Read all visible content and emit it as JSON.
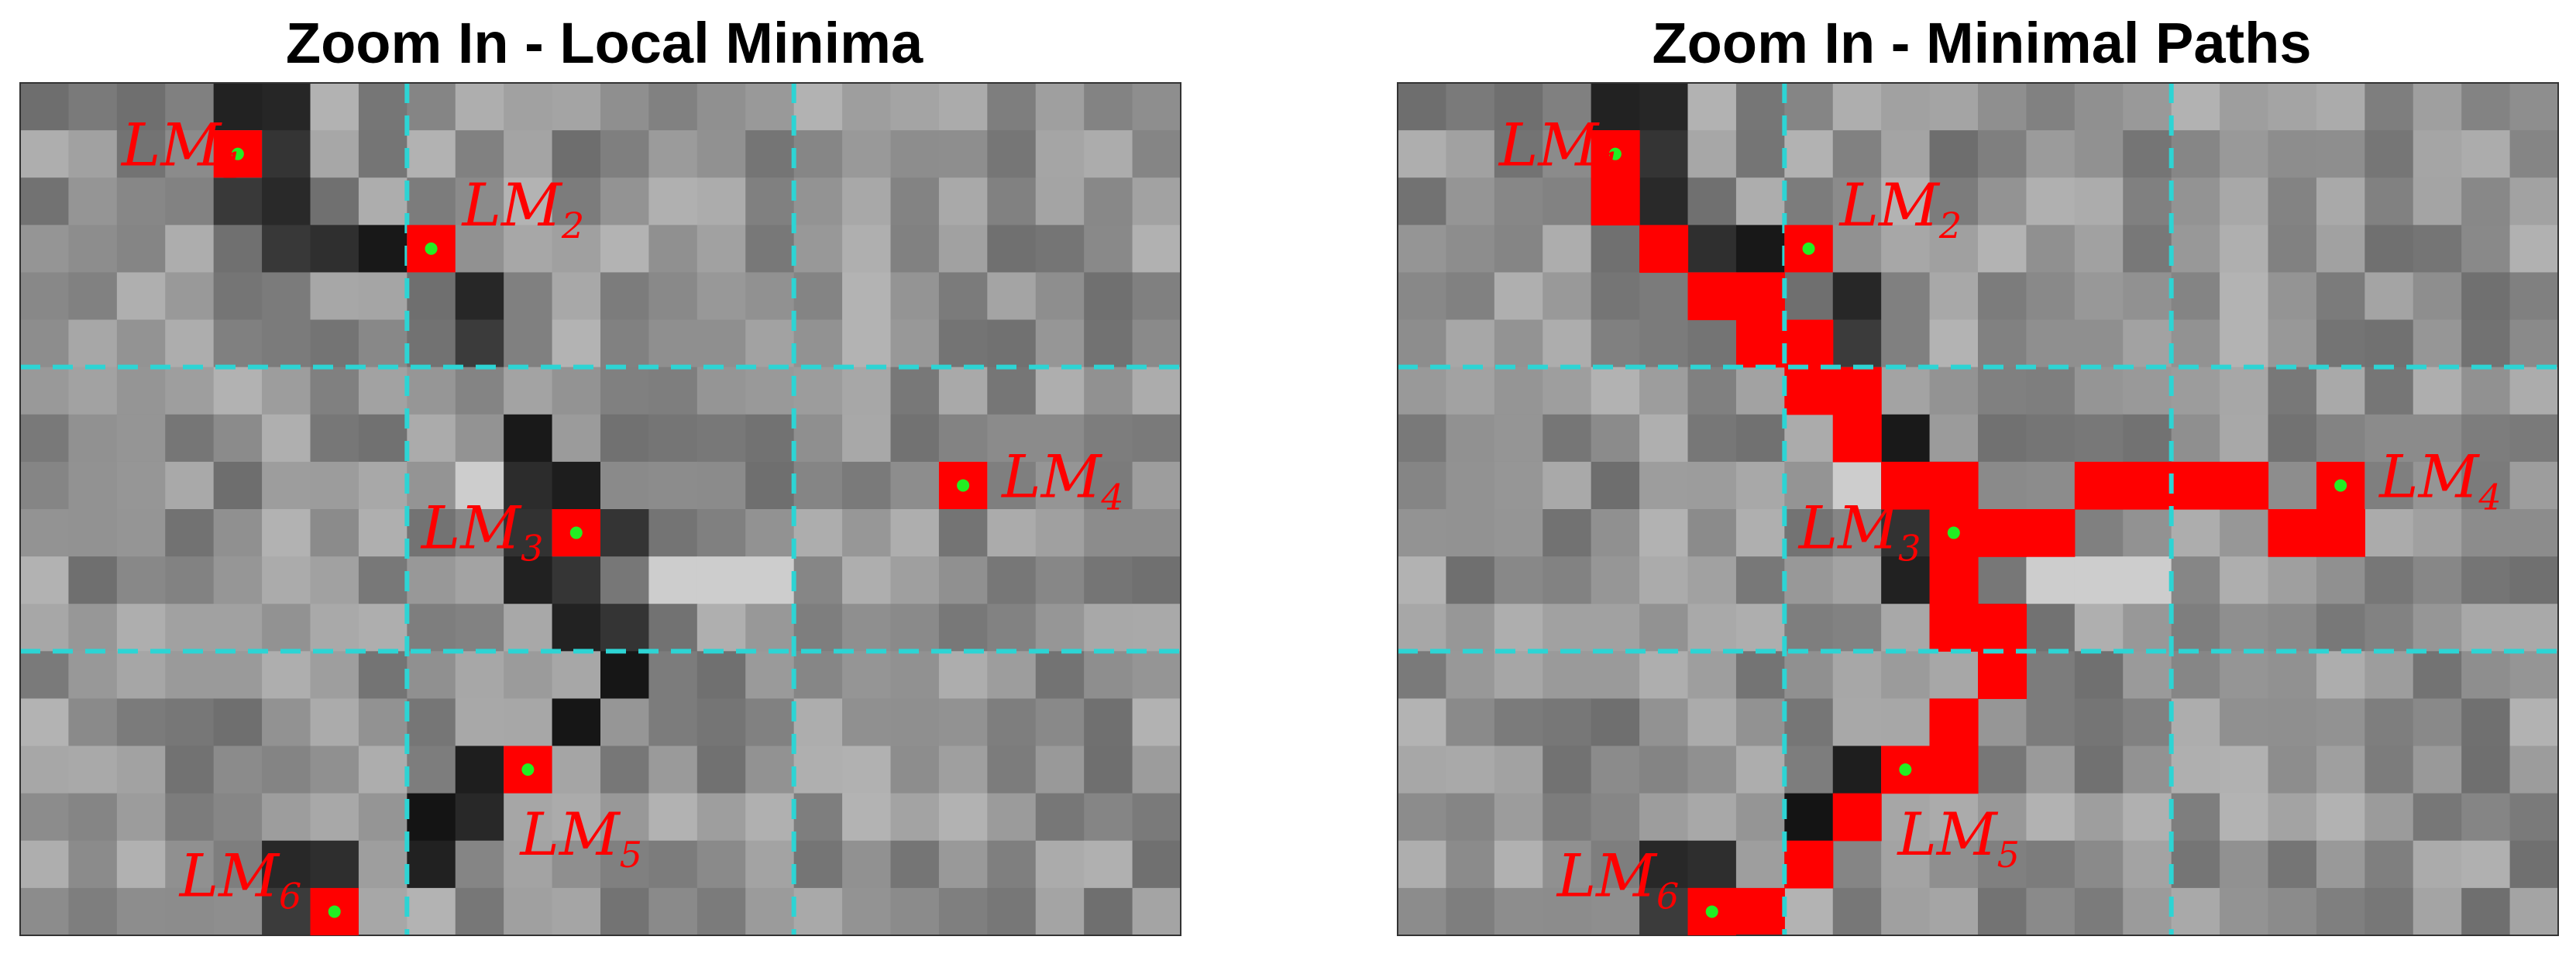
{
  "panels": [
    {
      "title": "Zoom In - Local Minima",
      "chart_data": {
        "type": "heatmap",
        "grid": {
          "rows": 18,
          "cols": 24
        },
        "colormap": "gray",
        "region_dividers": {
          "col_boundaries": [
            8,
            16
          ],
          "row_boundaries": [
            6,
            12
          ],
          "style": "dashed",
          "color": "#2dd4d4"
        },
        "local_minima": [
          {
            "label_base": "LM",
            "label_sub": "1",
            "row": 1,
            "col": 4
          },
          {
            "label_base": "LM",
            "label_sub": "2",
            "row": 3,
            "col": 8
          },
          {
            "label_base": "LM",
            "label_sub": "3",
            "row": 9,
            "col": 11
          },
          {
            "label_base": "LM",
            "label_sub": "4",
            "row": 8,
            "col": 19
          },
          {
            "label_base": "LM",
            "label_sub": "5",
            "row": 14,
            "col": 10
          },
          {
            "label_base": "LM",
            "label_sub": "6",
            "row": 17,
            "col": 6
          }
        ],
        "path_cells": []
      }
    },
    {
      "title": "Zoom In - Minimal Paths",
      "chart_data": {
        "type": "heatmap",
        "grid": {
          "rows": 18,
          "cols": 24
        },
        "colormap": "gray",
        "region_dividers": {
          "col_boundaries": [
            8,
            16
          ],
          "row_boundaries": [
            6,
            12
          ],
          "style": "dashed",
          "color": "#2dd4d4"
        },
        "local_minima": [
          {
            "label_base": "LM",
            "label_sub": "1",
            "row": 1,
            "col": 4
          },
          {
            "label_base": "LM",
            "label_sub": "2",
            "row": 3,
            "col": 8
          },
          {
            "label_base": "LM",
            "label_sub": "3",
            "row": 9,
            "col": 11
          },
          {
            "label_base": "LM",
            "label_sub": "4",
            "row": 8,
            "col": 19
          },
          {
            "label_base": "LM",
            "label_sub": "5",
            "row": 14,
            "col": 10
          },
          {
            "label_base": "LM",
            "label_sub": "6",
            "row": 17,
            "col": 6
          }
        ],
        "path_cells": [
          [
            1,
            4
          ],
          [
            2,
            4
          ],
          [
            3,
            5
          ],
          [
            4,
            6
          ],
          [
            4,
            7
          ],
          [
            5,
            7
          ],
          [
            5,
            8
          ],
          [
            6,
            8
          ],
          [
            6,
            9
          ],
          [
            7,
            9
          ],
          [
            8,
            10
          ],
          [
            8,
            11
          ],
          [
            9,
            11
          ],
          [
            9,
            12
          ],
          [
            10,
            11
          ],
          [
            11,
            11
          ],
          [
            11,
            12
          ],
          [
            12,
            12
          ],
          [
            13,
            11
          ],
          [
            14,
            11
          ],
          [
            14,
            10
          ],
          [
            15,
            9
          ],
          [
            16,
            8
          ],
          [
            17,
            7
          ],
          [
            17,
            6
          ],
          [
            9,
            12
          ],
          [
            9,
            13
          ],
          [
            8,
            14
          ],
          [
            8,
            15
          ],
          [
            8,
            16
          ],
          [
            8,
            17
          ],
          [
            9,
            18
          ],
          [
            9,
            19
          ]
        ]
      }
    }
  ],
  "colors": {
    "minimum_cell": "#ff0000",
    "minimum_dot": "#22ee22",
    "label": "#ff0000",
    "divider": "#2dd4d4"
  }
}
